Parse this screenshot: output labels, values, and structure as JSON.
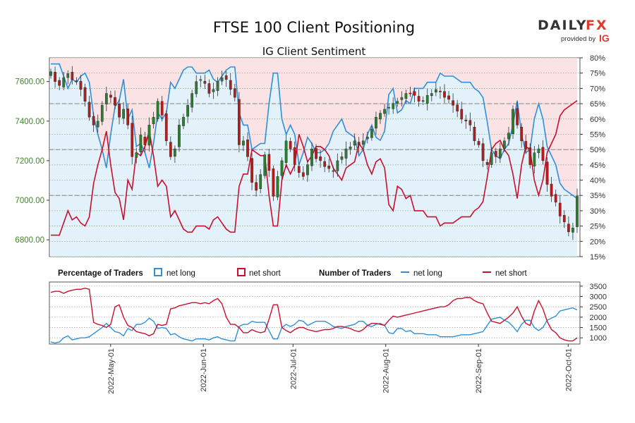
{
  "header": {
    "title": "FTSE 100 Client Positioning",
    "subtitle": "IG Client Sentiment"
  },
  "brand": {
    "name_left": "DAILY",
    "name_right": "FX",
    "provided_by": "provided by",
    "ig": "IG"
  },
  "legend": {
    "pct_heading": "Percentage of Traders",
    "pct_long": "net long",
    "pct_short": "net short",
    "num_heading": "Number of Traders",
    "num_long": "net long",
    "num_short": "net short"
  },
  "colors": {
    "long": "#2f8fd8",
    "short": "#c8102e",
    "bull_candle": "#2e7d32",
    "bear_candle": "#b71c1c",
    "short_fill": "#fbe2e4",
    "long_fill": "#e3f1fb",
    "price_axis": "#3b8a1e"
  },
  "chart_data": [
    {
      "type": "candlestick",
      "instrument": "FTSE 100",
      "y_left_ticks": [
        "6800.00",
        "7000.00",
        "7200.00",
        "7400.00",
        "7600.00"
      ],
      "y_left_range": [
        6715,
        7720
      ],
      "dates": [
        "2022-04-11",
        "2022-04-12",
        "2022-04-13",
        "2022-04-14",
        "2022-04-18",
        "2022-04-19",
        "2022-04-20",
        "2022-04-21",
        "2022-04-22",
        "2022-04-25",
        "2022-04-26",
        "2022-04-27",
        "2022-04-28",
        "2022-04-29",
        "2022-05-02",
        "2022-05-03",
        "2022-05-04",
        "2022-05-05",
        "2022-05-06",
        "2022-05-09",
        "2022-05-10",
        "2022-05-11",
        "2022-05-12",
        "2022-05-13",
        "2022-05-16",
        "2022-05-17",
        "2022-05-18",
        "2022-05-19",
        "2022-05-20",
        "2022-05-23",
        "2022-05-24",
        "2022-05-25",
        "2022-05-26",
        "2022-05-27",
        "2022-05-30",
        "2022-05-31",
        "2022-06-01",
        "2022-06-02",
        "2022-06-03",
        "2022-06-06",
        "2022-06-07",
        "2022-06-08",
        "2022-06-09",
        "2022-06-10",
        "2022-06-13",
        "2022-06-14",
        "2022-06-15",
        "2022-06-16",
        "2022-06-17",
        "2022-06-20",
        "2022-06-21",
        "2022-06-22",
        "2022-06-23",
        "2022-06-24",
        "2022-06-27",
        "2022-06-28",
        "2022-06-29",
        "2022-06-30",
        "2022-07-01",
        "2022-07-04",
        "2022-07-05",
        "2022-07-06",
        "2022-07-07",
        "2022-07-08",
        "2022-07-11",
        "2022-07-12",
        "2022-07-13",
        "2022-07-14",
        "2022-07-15",
        "2022-07-18",
        "2022-07-19",
        "2022-07-20",
        "2022-07-21",
        "2022-07-22",
        "2022-07-25",
        "2022-07-26",
        "2022-07-27",
        "2022-07-28",
        "2022-07-29",
        "2022-08-01",
        "2022-08-02",
        "2022-08-03",
        "2022-08-04",
        "2022-08-05",
        "2022-08-08",
        "2022-08-09",
        "2022-08-10",
        "2022-08-11",
        "2022-08-12",
        "2022-08-15",
        "2022-08-16",
        "2022-08-17",
        "2022-08-18",
        "2022-08-19",
        "2022-08-22",
        "2022-08-23",
        "2022-08-24",
        "2022-08-25",
        "2022-08-26",
        "2022-08-30",
        "2022-08-31",
        "2022-09-01",
        "2022-09-02",
        "2022-09-05",
        "2022-09-06",
        "2022-09-07",
        "2022-09-08",
        "2022-09-09",
        "2022-09-12",
        "2022-09-13",
        "2022-09-14",
        "2022-09-15",
        "2022-09-16",
        "2022-09-20",
        "2022-09-21",
        "2022-09-22",
        "2022-09-23",
        "2022-09-26",
        "2022-09-27",
        "2022-09-28",
        "2022-09-29",
        "2022-09-30",
        "2022-10-03",
        "2022-10-04"
      ],
      "close": [
        7650,
        7600,
        7580,
        7620,
        7640,
        7610,
        7600,
        7560,
        7500,
        7420,
        7380,
        7400,
        7480,
        7540,
        7520,
        7480,
        7420,
        7460,
        7380,
        7220,
        7240,
        7330,
        7280,
        7380,
        7420,
        7500,
        7430,
        7300,
        7220,
        7260,
        7380,
        7420,
        7480,
        7540,
        7600,
        7610,
        7590,
        7540,
        7560,
        7600,
        7620,
        7610,
        7560,
        7520,
        7280,
        7300,
        7220,
        7090,
        7050,
        7130,
        7230,
        7150,
        7020,
        7120,
        7200,
        7300,
        7260,
        7180,
        7140,
        7120,
        7180,
        7260,
        7210,
        7200,
        7170,
        7160,
        7150,
        7200,
        7220,
        7260,
        7270,
        7300,
        7280,
        7300,
        7320,
        7360,
        7420,
        7440,
        7460,
        7470,
        7490,
        7500,
        7520,
        7540,
        7540,
        7530,
        7500,
        7500,
        7530,
        7540,
        7560,
        7550,
        7520,
        7510,
        7480,
        7450,
        7410,
        7400,
        7380,
        7300,
        7280,
        7200,
        7180,
        7240,
        7220,
        7260,
        7300,
        7340,
        7460,
        7380,
        7300,
        7260,
        7180,
        7240,
        7260,
        7200,
        7080,
        7020,
        6990,
        6920,
        6890,
        6840,
        6860,
        7020
      ],
      "x_ticks": [
        "2022-May-01",
        "2022-Jun-01",
        "2022-Jul-01",
        "2022-Aug-01",
        "2022-Sep-01",
        "2022-Oct-01"
      ]
    },
    {
      "type": "area",
      "name": "Percentage of Traders",
      "y_right_ticks": [
        "15%",
        "20%",
        "25%",
        "30%",
        "35%",
        "40%",
        "45%",
        "50%",
        "55%",
        "60%",
        "65%",
        "70%",
        "75%",
        "80%"
      ],
      "y_right_range": [
        15,
        80
      ],
      "series": [
        {
          "name": "net long",
          "values": [
            78,
            78,
            78,
            74,
            70,
            73,
            72,
            74,
            75,
            72,
            61,
            55,
            50,
            44,
            55,
            64,
            66,
            73,
            60,
            63,
            51,
            52,
            49,
            44,
            52,
            62,
            60,
            62,
            72,
            70,
            73,
            76,
            77,
            77,
            75,
            75,
            75,
            76,
            73,
            72,
            74,
            76,
            77,
            77,
            62,
            58,
            58,
            50,
            51,
            52,
            52,
            65,
            75,
            75,
            60,
            55,
            58,
            55,
            45,
            49,
            54,
            52,
            49,
            49,
            50,
            52,
            56,
            58,
            60,
            56,
            55,
            54,
            48,
            50,
            55,
            58,
            54,
            53,
            56,
            68,
            70,
            62,
            63,
            66,
            65,
            70,
            70,
            70,
            72,
            72,
            72,
            75,
            74,
            74,
            74,
            73,
            72,
            72,
            72,
            70,
            69,
            67,
            59,
            50,
            48,
            47,
            50,
            52,
            58,
            66,
            55,
            49,
            50,
            60,
            65,
            60,
            51,
            48,
            45,
            39,
            37,
            36,
            35,
            34
          ]
        },
        {
          "name": "net short",
          "values": [
            22,
            22,
            22,
            26,
            30,
            27,
            28,
            26,
            25,
            28,
            39,
            45,
            50,
            56,
            45,
            36,
            34,
            27,
            40,
            37,
            49,
            48,
            51,
            56,
            48,
            38,
            40,
            38,
            28,
            30,
            27,
            24,
            23,
            23,
            25,
            25,
            25,
            24,
            27,
            28,
            26,
            24,
            23,
            23,
            38,
            42,
            42,
            50,
            49,
            48,
            48,
            35,
            25,
            25,
            40,
            45,
            42,
            45,
            55,
            51,
            46,
            48,
            51,
            51,
            50,
            48,
            44,
            42,
            40,
            44,
            45,
            46,
            52,
            50,
            45,
            42,
            46,
            47,
            44,
            32,
            30,
            38,
            37,
            34,
            35,
            30,
            30,
            30,
            28,
            28,
            28,
            25,
            26,
            26,
            26,
            27,
            28,
            28,
            28,
            30,
            31,
            33,
            41,
            50,
            52,
            53,
            50,
            48,
            42,
            34,
            45,
            51,
            50,
            40,
            35,
            40,
            49,
            52,
            55,
            61,
            63,
            64,
            65,
            66
          ]
        }
      ]
    },
    {
      "type": "line",
      "name": "Number of Traders",
      "y_right_ticks": [
        "1000",
        "1500",
        "2000",
        "2500",
        "3000",
        "3500"
      ],
      "y_right_range": [
        700,
        3700
      ],
      "series": [
        {
          "name": "net long",
          "values": [
            800,
            750,
            800,
            1000,
            1100,
            900,
            950,
            1000,
            1000,
            1050,
            1200,
            1350,
            1500,
            1700,
            1500,
            1300,
            1250,
            1100,
            1450,
            1350,
            1650,
            1650,
            1750,
            1950,
            1800,
            1450,
            1500,
            1450,
            1150,
            1200,
            1050,
            950,
            900,
            850,
            950,
            950,
            950,
            900,
            1000,
            1050,
            950,
            900,
            850,
            850,
            1550,
            1650,
            1650,
            1800,
            1750,
            1750,
            1750,
            1350,
            950,
            950,
            1500,
            1650,
            1550,
            1650,
            1850,
            1800,
            1600,
            1700,
            1800,
            1800,
            1800,
            1700,
            1550,
            1500,
            1450,
            1550,
            1600,
            1650,
            1800,
            1800,
            1600,
            1550,
            1650,
            1700,
            1600,
            1250,
            1200,
            1450,
            1450,
            1300,
            1350,
            1200,
            1200,
            1200,
            1150,
            1150,
            1150,
            1050,
            1050,
            1050,
            1050,
            1100,
            1150,
            1150,
            1150,
            1200,
            1250,
            1300,
            1600,
            1900,
            1950,
            2000,
            1850,
            1750,
            1550,
            1300,
            1650,
            1850,
            1850,
            1500,
            1350,
            1500,
            1850,
            1950,
            2050,
            2300,
            2350,
            2400,
            2450,
            2350
          ]
        },
        {
          "name": "net short",
          "values": [
            3200,
            3250,
            3250,
            3150,
            3250,
            3300,
            3350,
            3350,
            3400,
            3350,
            1750,
            1650,
            1600,
            1500,
            1650,
            2500,
            2600,
            2000,
            1600,
            1500,
            1300,
            1250,
            1200,
            1100,
            1200,
            1650,
            1600,
            1650,
            2400,
            2450,
            2550,
            2600,
            2650,
            2700,
            2700,
            2650,
            2700,
            2650,
            2800,
            2900,
            2650,
            2000,
            1650,
            1650,
            1500,
            1250,
            1250,
            1400,
            1300,
            1250,
            1300,
            1900,
            2600,
            2600,
            1500,
            1350,
            1250,
            1400,
            1500,
            1500,
            1400,
            1350,
            1300,
            1350,
            1400,
            1400,
            1450,
            1550,
            1550,
            1500,
            1450,
            1350,
            1300,
            1400,
            1600,
            1700,
            1700,
            1650,
            1600,
            1850,
            2050,
            2000,
            2050,
            2100,
            2150,
            2200,
            2250,
            2300,
            2350,
            2400,
            2450,
            2500,
            2500,
            2600,
            2800,
            2900,
            2900,
            2950,
            2950,
            2800,
            2700,
            2650,
            2200,
            1800,
            1750,
            1700,
            1850,
            2000,
            2200,
            2500,
            2050,
            1700,
            1600,
            2300,
            2800,
            2400,
            1800,
            1400,
            1250,
            1000,
            900,
            850,
            850,
            1000
          ]
        }
      ]
    }
  ]
}
